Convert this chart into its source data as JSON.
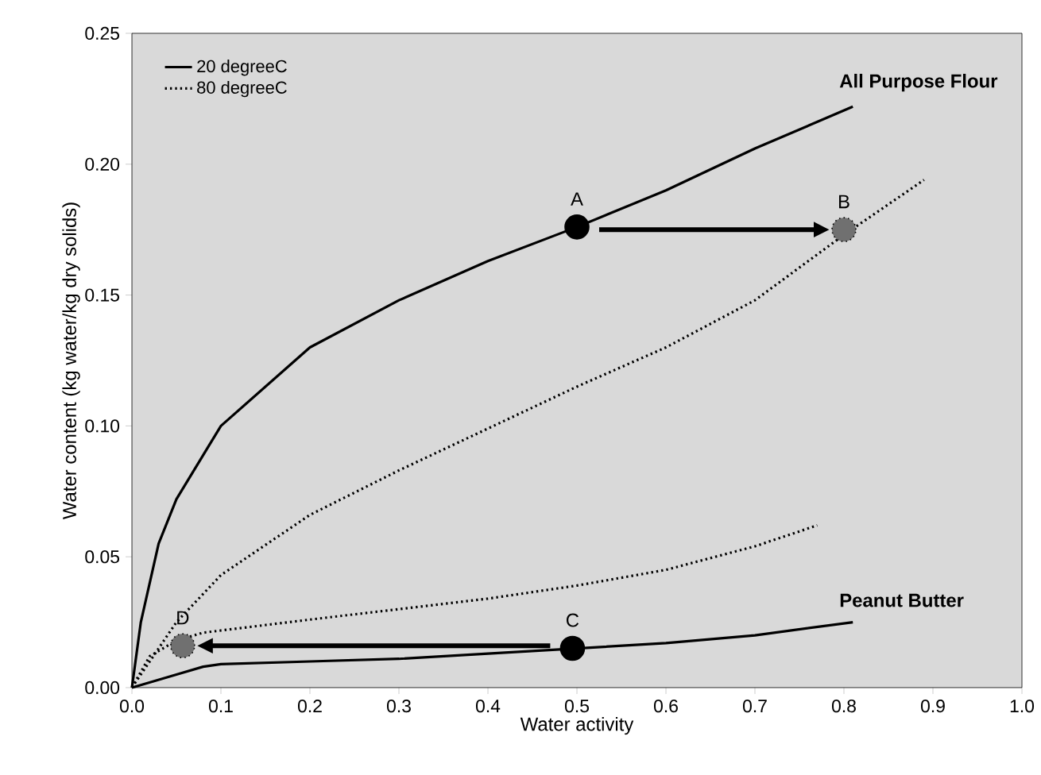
{
  "chart_data": {
    "type": "line",
    "xlabel": "Water activity",
    "ylabel": "Water content (kg water/kg dry solids)",
    "xlim": [
      0,
      1
    ],
    "ylim": [
      0,
      0.25
    ],
    "xticks": [
      {
        "value": 0,
        "label": "0.0"
      },
      {
        "value": 0.1,
        "label": "0.1"
      },
      {
        "value": 0.2,
        "label": "0.2"
      },
      {
        "value": 0.3,
        "label": "0.3"
      },
      {
        "value": 0.4,
        "label": "0.4"
      },
      {
        "value": 0.5,
        "label": "0.5"
      },
      {
        "value": 0.6,
        "label": "0.6"
      },
      {
        "value": 0.7,
        "label": "0.7"
      },
      {
        "value": 0.8,
        "label": "0.8"
      },
      {
        "value": 0.9,
        "label": "0.9"
      },
      {
        "value": 1,
        "label": "1.0"
      }
    ],
    "yticks": [
      {
        "value": 0,
        "label": "0.00"
      },
      {
        "value": 0.05,
        "label": "0.05"
      },
      {
        "value": 0.1,
        "label": "0.10"
      },
      {
        "value": 0.15,
        "label": "0.15"
      },
      {
        "value": 0.2,
        "label": "0.20"
      },
      {
        "value": 0.25,
        "label": "0.25"
      }
    ],
    "legend": "top left",
    "marker": "none",
    "series": [
      {
        "name": "20 degreeC",
        "color": "#000000",
        "line_style": "solid",
        "x": [
          0,
          0.01,
          0.03,
          0.05,
          0.1,
          0.2,
          0.3,
          0.4,
          0.5,
          0.6,
          0.7,
          0.81
        ],
        "values": [
          0,
          0.025,
          0.055,
          0.072,
          0.1,
          0.13,
          0.148,
          0.163,
          0.176,
          0.19,
          0.206,
          0.222
        ]
      },
      {
        "name": "80 degreeC",
        "color": "#000000",
        "line_style": "dotted",
        "x": [
          0,
          0.05,
          0.1,
          0.2,
          0.3,
          0.4,
          0.5,
          0.6,
          0.7,
          0.8,
          0.89
        ],
        "values": [
          0,
          0.025,
          0.043,
          0.066,
          0.083,
          0.099,
          0.115,
          0.13,
          0.148,
          0.173,
          0.194
        ]
      },
      {
        "color": "#000000",
        "line_style": "solid",
        "x": [
          0,
          0.05,
          0.08,
          0.1,
          0.2,
          0.3,
          0.4,
          0.5,
          0.6,
          0.7,
          0.81
        ],
        "values": [
          0,
          0.005,
          0.008,
          0.009,
          0.01,
          0.011,
          0.013,
          0.015,
          0.017,
          0.02,
          0.025
        ]
      },
      {
        "color": "#000000",
        "line_style": "dotted",
        "x": [
          0,
          0.02,
          0.05,
          0.08,
          0.2,
          0.3,
          0.4,
          0.5,
          0.6,
          0.7,
          0.77
        ],
        "values": [
          0,
          0.012,
          0.018,
          0.021,
          0.026,
          0.03,
          0.034,
          0.039,
          0.045,
          0.054,
          0.062
        ]
      },
      {
        "type": "scatter",
        "marker": "circle",
        "color": "#000000",
        "x": [
          0.5,
          0.495
        ],
        "values": [
          0.176,
          0.015
        ]
      },
      {
        "type": "scatter",
        "marker": "circle",
        "color": "#707070",
        "line_style": "dotted",
        "x": [
          0.8,
          0.057
        ],
        "values": [
          0.175,
          0.016
        ]
      }
    ],
    "annotations": [
      {
        "text": "All Purpose Flour",
        "x": 0.81,
        "y": 0.222
      },
      {
        "text": "Peanut Butter",
        "x": 0.81,
        "y": 0.025
      },
      {
        "text": "A",
        "x": 0.5,
        "y": 0.176
      },
      {
        "text": "B",
        "x": 0.8,
        "y": 0.175
      },
      {
        "text": "C",
        "x": 0.495,
        "y": 0.015
      },
      {
        "text": "D",
        "x": 0.057,
        "y": 0.016
      }
    ]
  }
}
